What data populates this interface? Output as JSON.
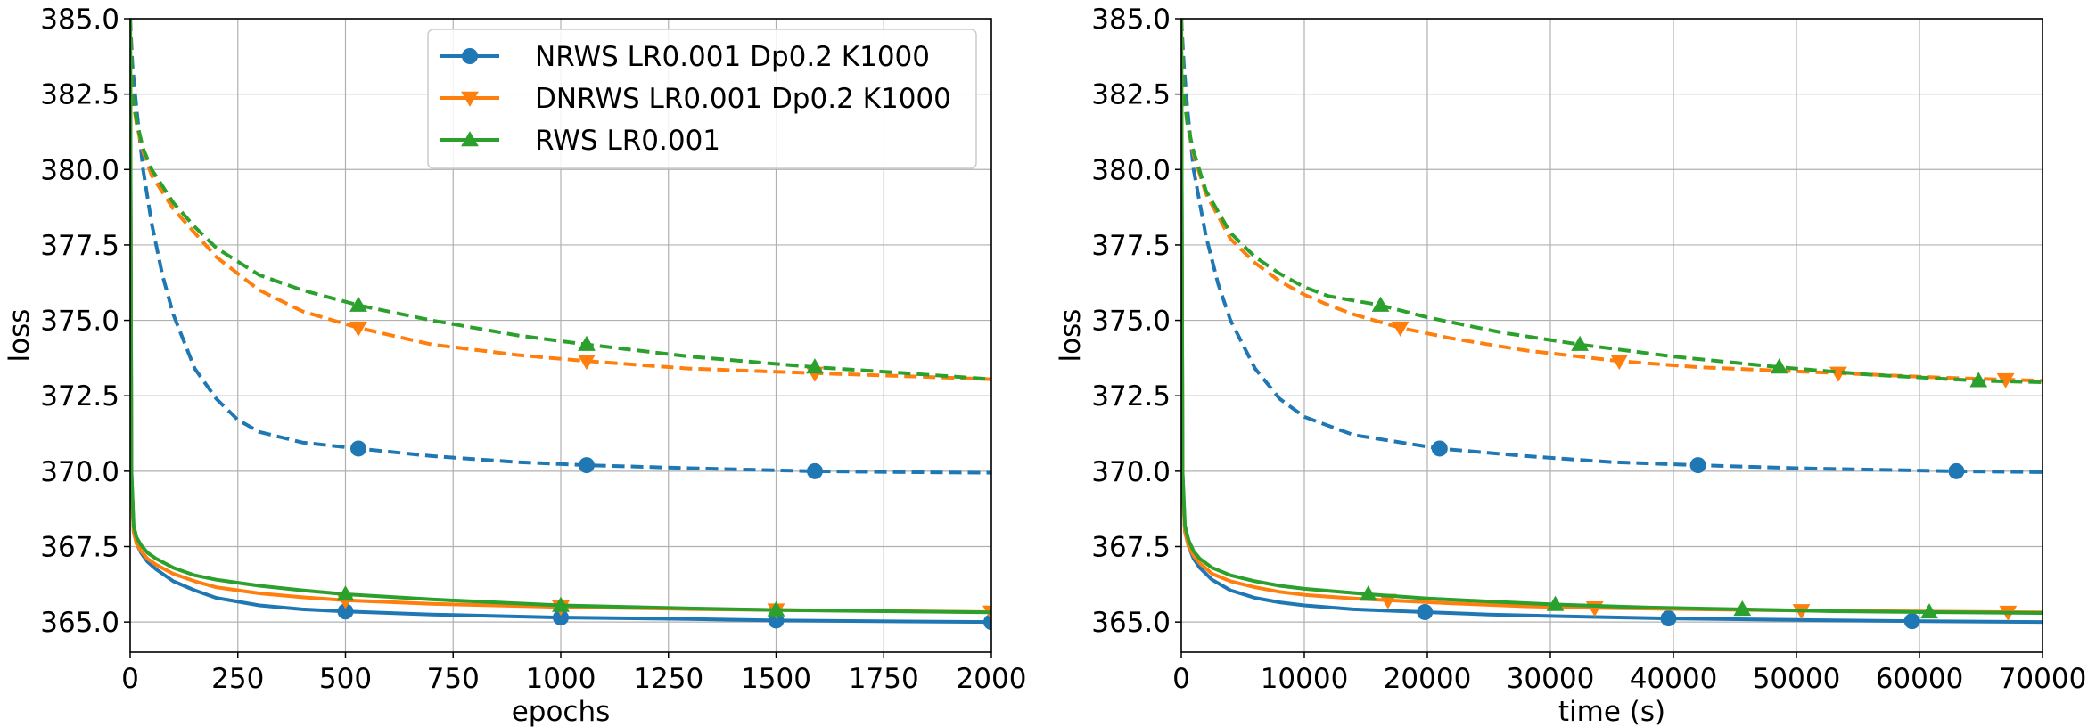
{
  "colors": {
    "nrws": "#1f77b4",
    "dnrws": "#ff7f0e",
    "rws": "#2ca02c"
  },
  "legend": {
    "entries": [
      {
        "label": "NRWS LR0.001 Dp0.2 K1000",
        "color": "#1f77b4",
        "marker": "circle"
      },
      {
        "label": "DNRWS LR0.001 Dp0.2 K1000",
        "color": "#ff7f0e",
        "marker": "triangle-down"
      },
      {
        "label": "RWS LR0.001",
        "color": "#2ca02c",
        "marker": "triangle-up"
      }
    ],
    "location": "top-right of left panel"
  },
  "chart_data": [
    {
      "type": "line",
      "xlabel": "epochs",
      "ylabel": "loss",
      "xlim": [
        0,
        2000
      ],
      "ylim": [
        364.0,
        385.0
      ],
      "xticks": [
        "0",
        "250",
        "500",
        "750",
        "1000",
        "1250",
        "1500",
        "1750",
        "2000"
      ],
      "xtick_values": [
        0,
        250,
        500,
        750,
        1000,
        1250,
        1500,
        1750,
        2000
      ],
      "yticks": [
        "365.0",
        "367.5",
        "370.0",
        "372.5",
        "375.0",
        "377.5",
        "380.0",
        "382.5",
        "385.0"
      ],
      "ytick_values": [
        365.0,
        367.5,
        370.0,
        372.5,
        375.0,
        377.5,
        380.0,
        382.5,
        385.0
      ],
      "grid": true,
      "series": [
        {
          "name": "NRWS LR0.001 Dp0.2 K1000 (dashed)",
          "key": "nrws",
          "style": "dashed",
          "marker": "circle",
          "x": [
            0,
            5,
            15,
            30,
            50,
            75,
            100,
            150,
            200,
            250,
            300,
            400,
            530,
            700,
            900,
            1060,
            1300,
            1590,
            1800,
            2000
          ],
          "y": [
            385.0,
            383.5,
            382.0,
            380.0,
            378.2,
            376.5,
            375.2,
            373.4,
            372.4,
            371.7,
            371.3,
            370.95,
            370.75,
            370.5,
            370.3,
            370.2,
            370.1,
            370.0,
            369.97,
            369.95
          ],
          "markers_x": [
            530,
            1060,
            1590
          ]
        },
        {
          "name": "DNRWS LR0.001 Dp0.2 K1000 (dashed)",
          "key": "dnrws",
          "style": "dashed",
          "marker": "triangle-down",
          "x": [
            0,
            5,
            15,
            30,
            50,
            100,
            150,
            200,
            300,
            400,
            530,
            700,
            900,
            1060,
            1300,
            1590,
            1800,
            2000
          ],
          "y": [
            385.0,
            382.5,
            381.5,
            380.6,
            379.8,
            378.7,
            377.9,
            377.1,
            376.0,
            375.3,
            374.75,
            374.2,
            373.85,
            373.65,
            373.4,
            373.25,
            373.15,
            373.05
          ],
          "markers_x": [
            530,
            1060,
            1590
          ]
        },
        {
          "name": "RWS LR0.001 (dashed)",
          "key": "rws",
          "style": "dashed",
          "marker": "triangle-up",
          "x": [
            0,
            5,
            15,
            30,
            50,
            100,
            150,
            200,
            300,
            400,
            530,
            700,
            900,
            1060,
            1300,
            1590,
            1800,
            2000
          ],
          "y": [
            385.0,
            382.5,
            381.6,
            380.7,
            380.0,
            378.9,
            378.1,
            377.4,
            376.5,
            376.0,
            375.5,
            375.0,
            374.5,
            374.2,
            373.8,
            373.45,
            373.25,
            373.05
          ],
          "markers_x": [
            530,
            1060,
            1590
          ]
        },
        {
          "name": "NRWS LR0.001 Dp0.2 K1000 (solid)",
          "key": "nrws",
          "style": "solid",
          "marker": "circle",
          "x": [
            0,
            3,
            8,
            15,
            25,
            40,
            60,
            100,
            150,
            200,
            300,
            400,
            500,
            700,
            1000,
            1300,
            1500,
            1800,
            2000
          ],
          "y": [
            385.0,
            370.0,
            368.0,
            367.6,
            367.3,
            367.0,
            366.75,
            366.35,
            366.05,
            365.8,
            365.55,
            365.42,
            365.35,
            365.25,
            365.15,
            365.1,
            365.05,
            365.02,
            365.0
          ],
          "markers_x": [
            500,
            1000,
            1500,
            2000
          ]
        },
        {
          "name": "DNRWS LR0.001 Dp0.2 K1000 (solid)",
          "key": "dnrws",
          "style": "solid",
          "marker": "triangle-down",
          "x": [
            0,
            3,
            8,
            15,
            25,
            40,
            60,
            100,
            150,
            200,
            300,
            400,
            500,
            700,
            1000,
            1300,
            1500,
            1800,
            2000
          ],
          "y": [
            385.0,
            369.5,
            368.0,
            367.6,
            367.35,
            367.1,
            366.9,
            366.6,
            366.35,
            366.15,
            365.95,
            365.82,
            365.72,
            365.6,
            365.5,
            365.43,
            365.4,
            365.36,
            365.33
          ],
          "markers_x": [
            500,
            1000,
            1500,
            2000
          ]
        },
        {
          "name": "RWS LR0.001 (solid)",
          "key": "rws",
          "style": "solid",
          "marker": "triangle-up",
          "x": [
            0,
            3,
            8,
            15,
            25,
            40,
            60,
            100,
            150,
            200,
            300,
            400,
            500,
            700,
            1000,
            1300,
            1500,
            1800,
            2000
          ],
          "y": [
            385.0,
            370.0,
            368.2,
            367.8,
            367.55,
            367.3,
            367.1,
            366.8,
            366.55,
            366.4,
            366.2,
            366.05,
            365.92,
            365.75,
            365.55,
            365.45,
            365.4,
            365.35,
            365.32
          ],
          "markers_x": [
            500,
            1000,
            1500
          ]
        }
      ]
    },
    {
      "type": "line",
      "xlabel": "time (s)",
      "ylabel": "loss",
      "xlim": [
        0,
        70000
      ],
      "ylim": [
        364.0,
        385.0
      ],
      "xticks": [
        "0",
        "10000",
        "20000",
        "30000",
        "40000",
        "50000",
        "60000",
        "70000"
      ],
      "xtick_values": [
        0,
        10000,
        20000,
        30000,
        40000,
        50000,
        60000,
        70000
      ],
      "yticks": [
        "365.0",
        "367.5",
        "370.0",
        "372.5",
        "375.0",
        "377.5",
        "380.0",
        "382.5",
        "385.0"
      ],
      "ytick_values": [
        365.0,
        367.5,
        370.0,
        372.5,
        375.0,
        377.5,
        380.0,
        382.5,
        385.0
      ],
      "grid": true,
      "series": [
        {
          "name": "NRWS LR0.001 Dp0.2 K1000 (dashed)",
          "key": "nrws",
          "style": "dashed",
          "marker": "circle",
          "x": [
            0,
            200,
            500,
            1000,
            2000,
            3000,
            4000,
            6000,
            8000,
            10000,
            14000,
            21000,
            28000,
            35000,
            42000,
            50000,
            63000,
            70000
          ],
          "y": [
            385.0,
            383.5,
            382.0,
            380.0,
            377.8,
            376.2,
            375.0,
            373.4,
            372.4,
            371.8,
            371.2,
            370.75,
            370.5,
            370.3,
            370.2,
            370.1,
            370.0,
            369.97
          ],
          "markers_x": [
            21000,
            42000,
            63000
          ]
        },
        {
          "name": "DNRWS LR0.001 Dp0.2 K1000 (dashed)",
          "key": "dnrws",
          "style": "dashed",
          "marker": "triangle-down",
          "x": [
            0,
            200,
            500,
            1000,
            2000,
            4000,
            6000,
            8000,
            10000,
            12000,
            14000,
            17800,
            22000,
            28000,
            35600,
            42000,
            53400,
            62000,
            70000
          ],
          "y": [
            385.0,
            382.5,
            381.5,
            380.5,
            379.2,
            377.7,
            376.9,
            376.3,
            375.85,
            375.5,
            375.2,
            374.75,
            374.4,
            374.0,
            373.65,
            373.45,
            373.25,
            373.1,
            373.0
          ],
          "markers_x": [
            17800,
            35600,
            53400,
            67000
          ]
        },
        {
          "name": "RWS LR0.001 (dashed)",
          "key": "rws",
          "style": "dashed",
          "marker": "triangle-up",
          "x": [
            0,
            200,
            500,
            1000,
            2000,
            4000,
            6000,
            8000,
            10000,
            12000,
            16200,
            20000,
            26000,
            32400,
            40000,
            48600,
            56000,
            64800,
            70000
          ],
          "y": [
            385.0,
            382.5,
            381.5,
            380.6,
            379.3,
            377.9,
            377.1,
            376.55,
            376.1,
            375.8,
            375.5,
            375.1,
            374.6,
            374.2,
            373.8,
            373.45,
            373.2,
            373.0,
            372.95
          ],
          "markers_x": [
            16200,
            32400,
            48600,
            64800
          ]
        },
        {
          "name": "NRWS LR0.001 Dp0.2 K1000 (solid)",
          "key": "nrws",
          "style": "solid",
          "marker": "circle",
          "x": [
            0,
            100,
            300,
            600,
            1000,
            1500,
            2500,
            4000,
            6000,
            8000,
            10000,
            14000,
            19800,
            25000,
            30000,
            39600,
            50000,
            59400,
            70000
          ],
          "y": [
            385.0,
            370.0,
            368.0,
            367.5,
            367.1,
            366.8,
            366.4,
            366.05,
            365.8,
            365.65,
            365.55,
            365.42,
            365.33,
            365.25,
            365.2,
            365.12,
            365.07,
            365.03,
            365.0
          ],
          "markers_x": [
            19800,
            39600,
            59400
          ]
        },
        {
          "name": "DNRWS LR0.001 Dp0.2 K1000 (solid)",
          "key": "dnrws",
          "style": "solid",
          "marker": "triangle-down",
          "x": [
            0,
            100,
            300,
            600,
            1000,
            1500,
            2500,
            4000,
            6000,
            8000,
            10000,
            14000,
            16800,
            22000,
            28000,
            33600,
            42000,
            50400,
            60000,
            70000
          ],
          "y": [
            385.0,
            369.5,
            368.0,
            367.5,
            367.2,
            366.95,
            366.6,
            366.35,
            366.15,
            366.0,
            365.9,
            365.78,
            365.72,
            365.62,
            365.52,
            365.47,
            365.42,
            365.38,
            365.35,
            365.32
          ],
          "markers_x": [
            16800,
            33600,
            50400,
            67200
          ]
        },
        {
          "name": "RWS LR0.001 (solid)",
          "key": "rws",
          "style": "solid",
          "marker": "triangle-up",
          "x": [
            0,
            100,
            300,
            600,
            1000,
            1500,
            2500,
            4000,
            6000,
            8000,
            10000,
            15200,
            20000,
            25000,
            30400,
            38000,
            45600,
            53000,
            60800,
            70000
          ],
          "y": [
            385.0,
            370.0,
            368.2,
            367.7,
            367.35,
            367.1,
            366.8,
            366.55,
            366.35,
            366.2,
            366.1,
            365.92,
            365.78,
            365.68,
            365.58,
            365.48,
            365.42,
            365.36,
            365.33,
            365.3
          ],
          "markers_x": [
            15200,
            30400,
            45600,
            60800
          ]
        }
      ]
    }
  ]
}
